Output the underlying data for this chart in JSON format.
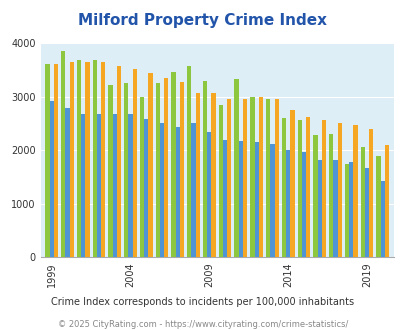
{
  "title": "Milford Property Crime Index",
  "subtitle": "Crime Index corresponds to incidents per 100,000 inhabitants",
  "footer": "© 2025 CityRating.com - https://www.cityrating.com/crime-statistics/",
  "years": [
    1999,
    2000,
    2001,
    2002,
    2003,
    2004,
    2005,
    2006,
    2007,
    2008,
    2009,
    2010,
    2011,
    2012,
    2013,
    2014,
    2015,
    2016,
    2017,
    2018,
    2019,
    2020
  ],
  "milford": [
    3600,
    3840,
    3680,
    3680,
    3210,
    3250,
    3000,
    3250,
    3450,
    3570,
    3290,
    2840,
    3330,
    3000,
    2950,
    2600,
    2570,
    2280,
    2300,
    1750,
    2050,
    1900
  ],
  "connecticut": [
    2920,
    2790,
    2680,
    2680,
    2680,
    2680,
    2590,
    2510,
    2430,
    2500,
    2340,
    2190,
    2170,
    2150,
    2120,
    2010,
    1960,
    1810,
    1810,
    1780,
    1660,
    1430
  ],
  "national": [
    3610,
    3650,
    3650,
    3640,
    3560,
    3520,
    3440,
    3340,
    3280,
    3060,
    3060,
    2960,
    2960,
    2990,
    2960,
    2740,
    2610,
    2560,
    2500,
    2470,
    2400,
    2100
  ],
  "bar_colors": {
    "milford": "#8dc63f",
    "connecticut": "#4f94d4",
    "national": "#f5a623"
  },
  "bg_color": "#deeef6",
  "ylim": [
    0,
    4000
  ],
  "yticks": [
    0,
    1000,
    2000,
    3000,
    4000
  ],
  "xtick_years": [
    1999,
    2004,
    2009,
    2014,
    2019
  ],
  "title_color": "#2255aa",
  "subtitle_color": "#333333",
  "footer_color": "#888888"
}
